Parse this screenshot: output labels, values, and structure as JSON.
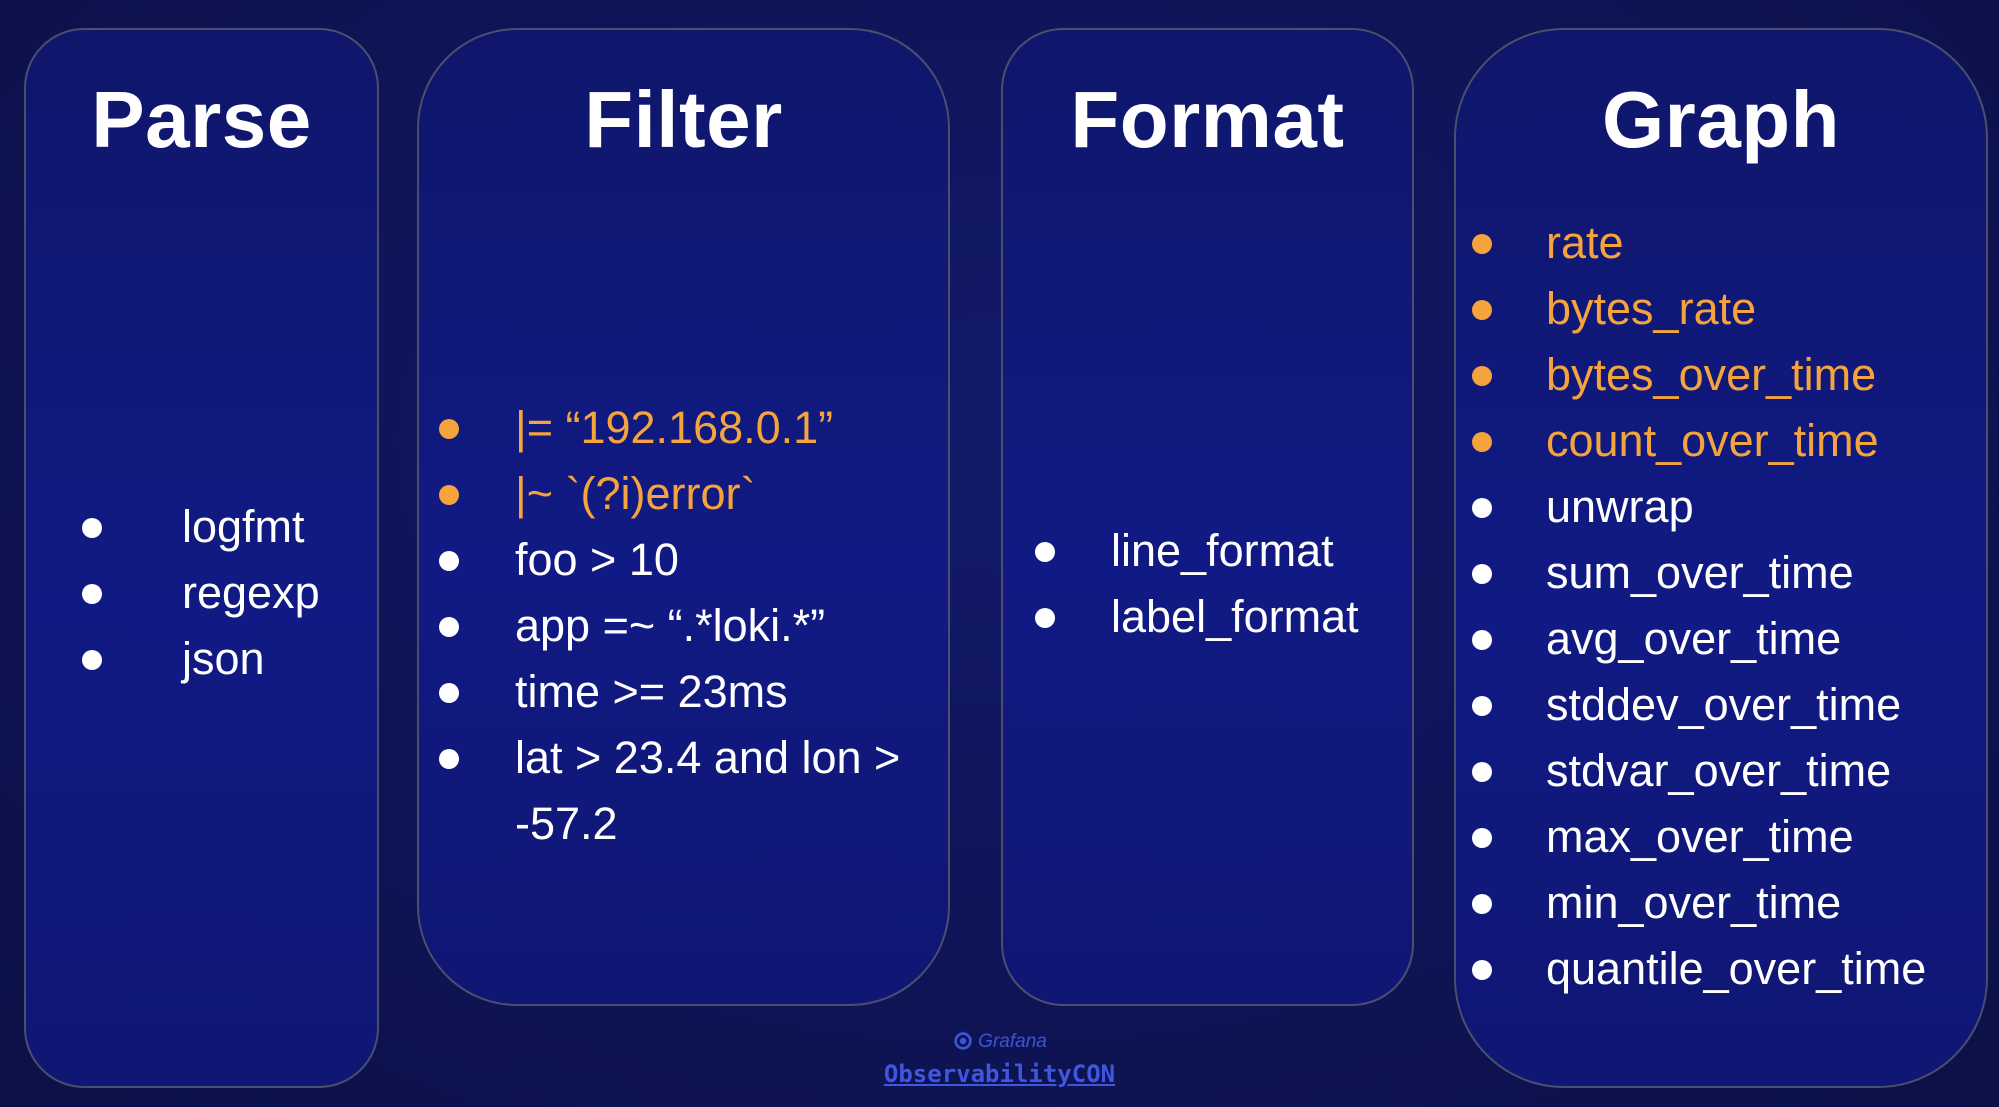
{
  "colors": {
    "background": "#0f155a",
    "panel": "#111a84",
    "panel_border": "#4a4f6e",
    "highlight": "#f5a33c",
    "text": "#ffffff",
    "logo": "#3f57e0"
  },
  "panels": {
    "parse": {
      "title": "Parse",
      "items": [
        {
          "text": "logfmt",
          "highlight": false
        },
        {
          "text": "regexp",
          "highlight": false
        },
        {
          "text": "json",
          "highlight": false
        }
      ]
    },
    "filter": {
      "title": "Filter",
      "items": [
        {
          "text": "|= “192.168.0.1”",
          "highlight": true
        },
        {
          "text": "|~ `(?i)error`",
          "highlight": true
        },
        {
          "text": "foo > 10",
          "highlight": false
        },
        {
          "text": "app =~ “.*loki.*”",
          "highlight": false
        },
        {
          "text": "time >= 23ms",
          "highlight": false
        },
        {
          "text": "lat > 23.4 and lon > -57.2",
          "highlight": false
        }
      ]
    },
    "format": {
      "title": "Format",
      "items": [
        {
          "text": "line_format",
          "highlight": false
        },
        {
          "text": "label_format",
          "highlight": false
        }
      ]
    },
    "graph": {
      "title": "Graph",
      "items": [
        {
          "text": "rate",
          "highlight": true
        },
        {
          "text": "bytes_rate",
          "highlight": true
        },
        {
          "text": "bytes_over_time",
          "highlight": true
        },
        {
          "text": "count_over_time",
          "highlight": true
        },
        {
          "text": "unwrap",
          "highlight": false
        },
        {
          "text": "sum_over_time",
          "highlight": false
        },
        {
          "text": "avg_over_time",
          "highlight": false
        },
        {
          "text": "stddev_over_time",
          "highlight": false
        },
        {
          "text": "stdvar_over_time",
          "highlight": false
        },
        {
          "text": "max_over_time",
          "highlight": false
        },
        {
          "text": "min_over_time",
          "highlight": false
        },
        {
          "text": "quantile_over_time",
          "highlight": false
        }
      ]
    }
  },
  "footer": {
    "brand": "Grafana",
    "brand_icon": "grafana-logo-icon",
    "event": "ObservabilityCON"
  }
}
